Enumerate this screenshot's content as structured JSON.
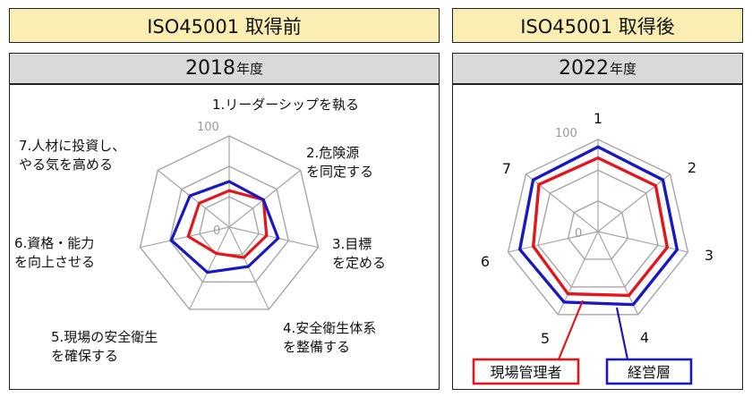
{
  "headers": {
    "left_title": "ISO45001 取得前",
    "right_title": "ISO45001 取得後",
    "left_year": "2018",
    "right_year": "2022",
    "year_suffix": "年度"
  },
  "chart_data": [
    {
      "type": "radar",
      "title": "2018年度",
      "axes": [
        "1.リーダーシップを執る",
        "2.危険源を同定する",
        "3.目標を定める",
        "4.安全衛生体系を整備する",
        "5.現場の安全衛生を確保する",
        "6.資格・能力を向上させる",
        "7.人材に投資し、やる気を高める"
      ],
      "axis_label_lines": [
        [
          "1.リーダーシップを執る"
        ],
        [
          "2.危険源",
          "を同定する"
        ],
        [
          "3.目標",
          "を定める"
        ],
        [
          "4.安全衛生体系",
          "を整備する"
        ],
        [
          "5.現場の安全衛生",
          "を確保する"
        ],
        [
          "6.資格・能力",
          "を向上させる"
        ],
        [
          "7.人材に投資し、",
          "やる気を高める"
        ]
      ],
      "rlim": [
        0,
        100
      ],
      "tick_labels": [
        "0",
        "100"
      ],
      "grid": true,
      "series": [
        {
          "name": "現場管理者",
          "color": "#e3161c",
          "values": [
            40,
            48,
            42,
            37,
            32,
            46,
            42
          ]
        },
        {
          "name": "経営層",
          "color": "#1919c4",
          "values": [
            50,
            48,
            55,
            48,
            55,
            65,
            55
          ]
        }
      ]
    },
    {
      "type": "radar",
      "title": "2022年度",
      "axes": [
        "1",
        "2",
        "3",
        "4",
        "5",
        "6",
        "7"
      ],
      "axis_label_lines": [
        [
          "1"
        ],
        [
          "2"
        ],
        [
          "3"
        ],
        [
          "4"
        ],
        [
          "5"
        ],
        [
          "6"
        ],
        [
          "7"
        ]
      ],
      "rlim": [
        0,
        100
      ],
      "tick_labels": [
        "0",
        "100"
      ],
      "grid": true,
      "series": [
        {
          "name": "現場管理者",
          "color": "#e3161c",
          "values": [
            80,
            80,
            77,
            77,
            75,
            72,
            82
          ]
        },
        {
          "name": "経営層",
          "color": "#1919c4",
          "values": [
            92,
            90,
            88,
            88,
            85,
            87,
            90
          ]
        }
      ],
      "legend": [
        "現場管理者",
        "経営層"
      ],
      "legend_position": "bottom"
    }
  ]
}
